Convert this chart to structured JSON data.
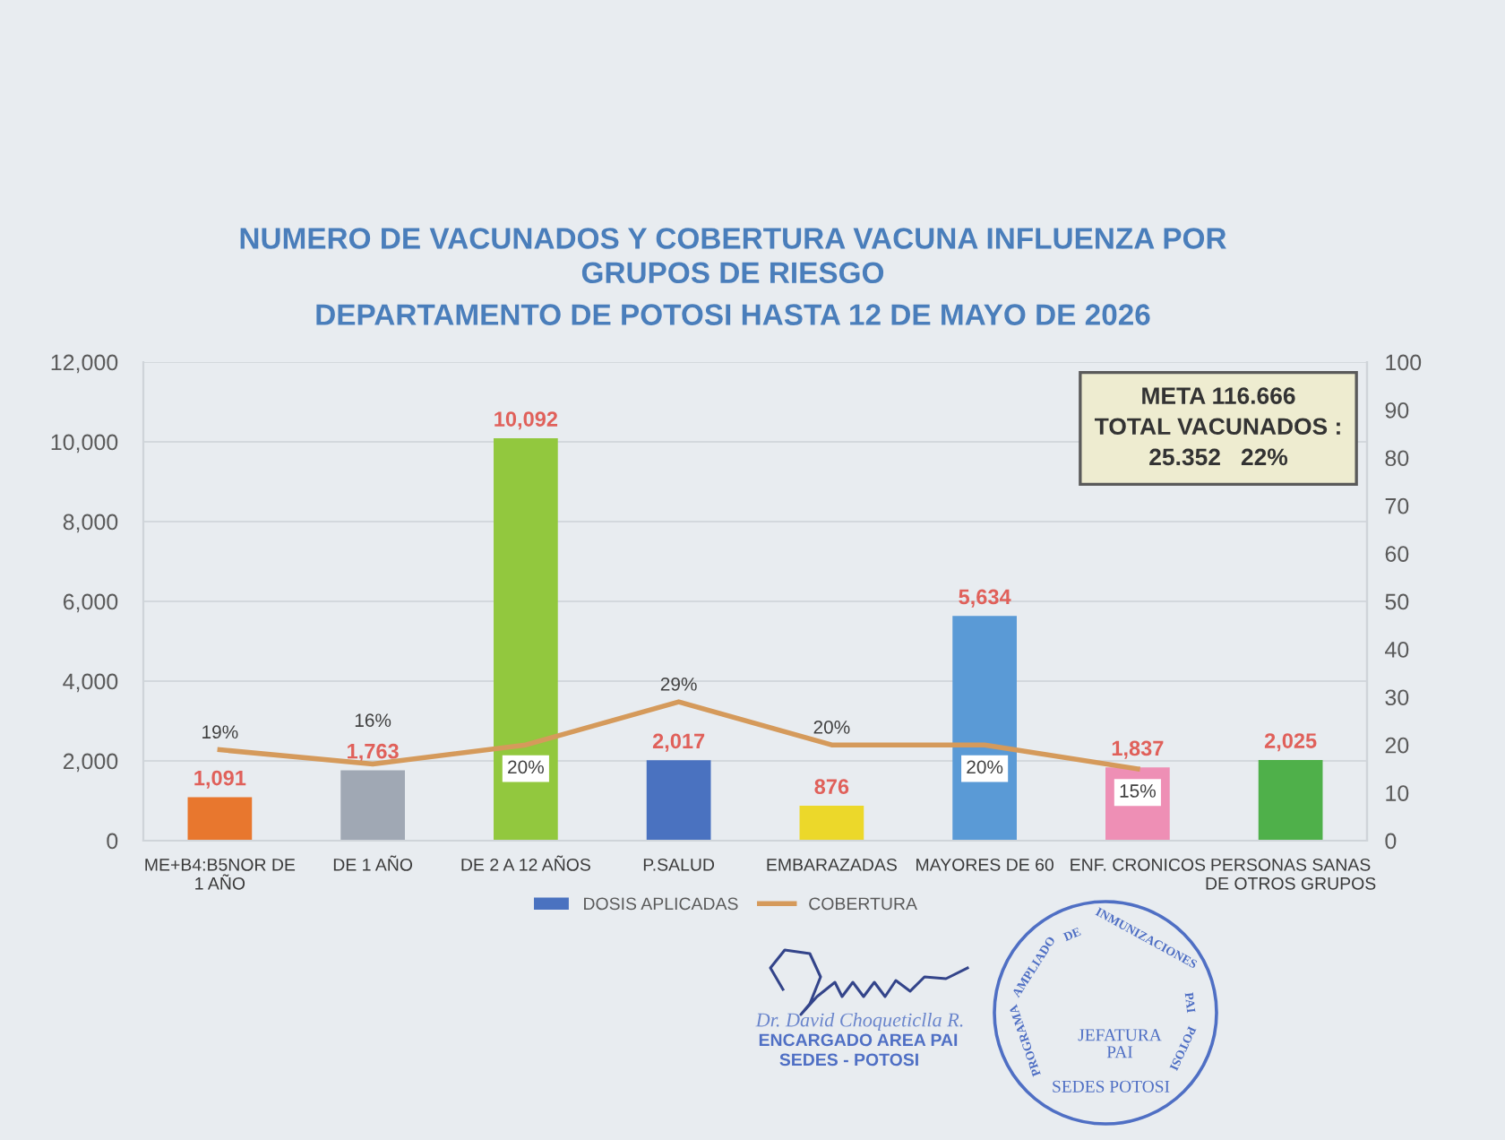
{
  "chart_data": {
    "type": "bar",
    "title": "NUMERO DE VACUNADOS Y COBERTURA VACUNA INFLUENZA POR\nGRUPOS DE RIESGO",
    "subtitle": "DEPARTAMENTO DE POTOSI HASTA 12 DE MAYO DE 2026",
    "categories": [
      "ME+B4:B5NOR DE\n1 AÑO",
      "DE 1 AÑO",
      "DE 2 A 12 AÑOS",
      "P.SALUD",
      "EMBARAZADAS",
      "MAYORES DE 60",
      "ENF. CRONICOS",
      "PERSONAS SANAS\nDE OTROS GRUPOS"
    ],
    "series": [
      {
        "name": "DOSIS APLICADAS",
        "color": "#4a72c0",
        "colors": [
          "#e8772e",
          "#a0a8b4",
          "#92c83e",
          "#4a72c0",
          "#ecd82a",
          "#5a9ad6",
          "#ee8fb5",
          "#4fb04a"
        ],
        "values": [
          1091,
          1763,
          10092,
          2017,
          876,
          5634,
          1837,
          2025
        ],
        "value_labels": [
          "1,091",
          "1,763",
          "10,092",
          "2,017",
          "876",
          "5,634",
          "1,837",
          "2,025"
        ]
      },
      {
        "name": "COBERTURA",
        "type": "line",
        "axis": "y2",
        "color": "#d59a5b",
        "values": [
          19,
          16,
          20,
          29,
          20,
          20,
          15,
          null
        ],
        "value_labels": [
          "19%",
          "16%",
          "20%",
          "29%",
          "20%",
          "20%",
          "15%",
          null
        ]
      }
    ],
    "ylim": [
      0,
      12000
    ],
    "yticks": [
      0,
      {
        "value": 2000,
        "label": "2,000"
      },
      {
        "value": 4000,
        "label": "4,000"
      },
      {
        "value": 6000,
        "label": "6,000"
      },
      {
        "value": 8000,
        "label": "8,000"
      },
      {
        "value": 10000,
        "label": "10,000"
      },
      {
        "value": 12000,
        "label": "12,000"
      }
    ],
    "y2lim": [
      0,
      100
    ],
    "y2ticks": [
      0,
      10,
      20,
      30,
      40,
      50,
      60,
      70,
      80,
      90,
      100
    ],
    "grid": "y",
    "legend": "bottom",
    "annotations": [
      "META 116.666\nTOTAL VACUNADOS :\n25.352   22%",
      "Dr. David Choqueticlla R.",
      "ENCARGADO AREA PAI",
      "SEDES - POTOSI",
      "PROGRAMA AMPLIADO DE INMUNIZACIONES PAI POTOSI",
      "JEFATURA\nPAI",
      "SEDES POTOSI"
    ]
  }
}
